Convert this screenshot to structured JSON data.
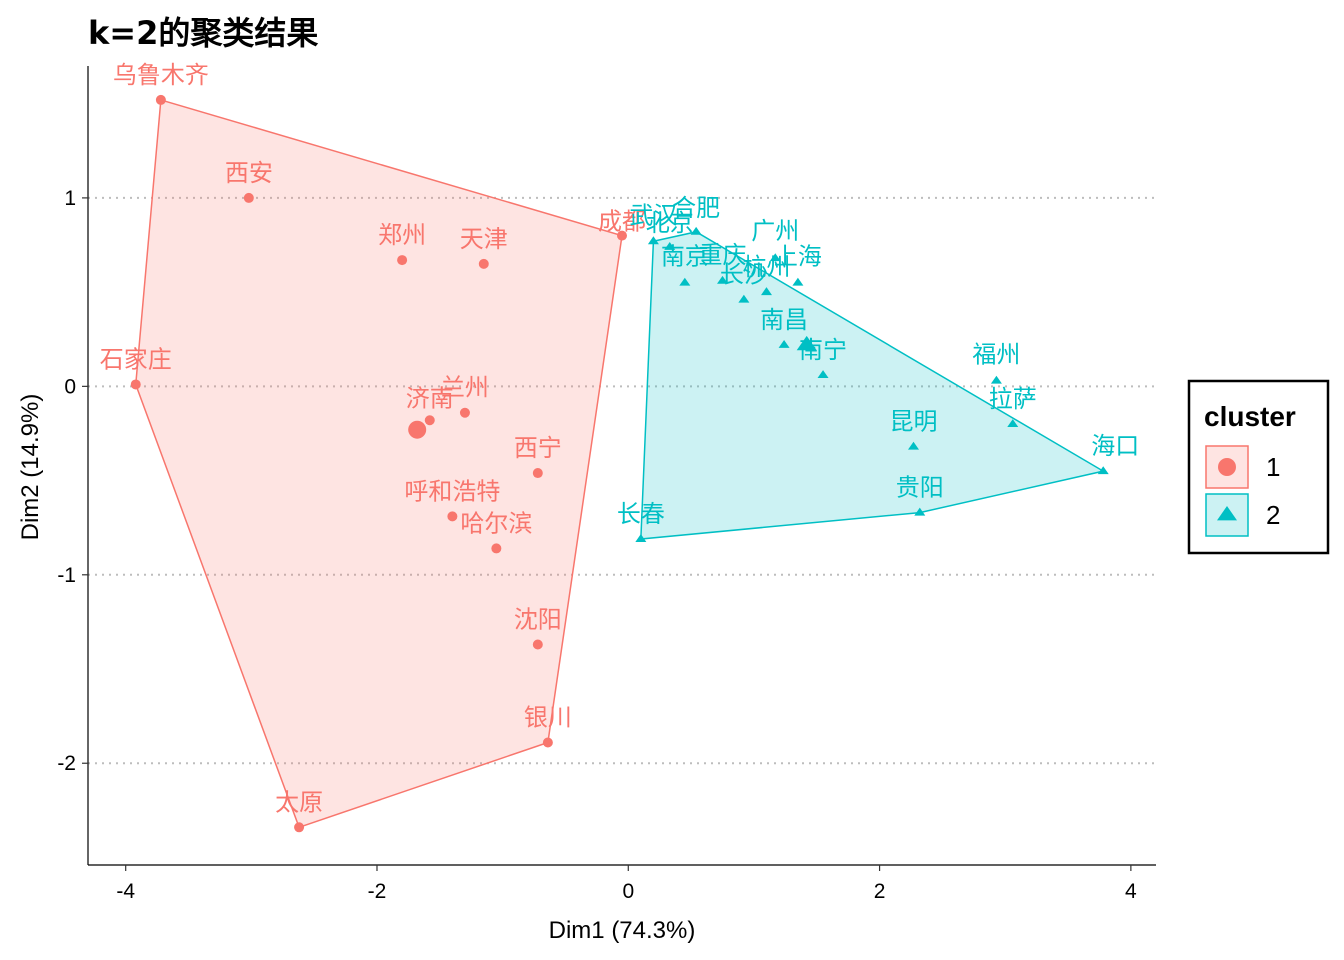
{
  "chart_data": {
    "type": "scatter",
    "title": "k=2的聚类结果",
    "xlabel": "Dim1 (74.3%)",
    "ylabel": "Dim2 (14.9%)",
    "xlim": [
      -4.3,
      4.2
    ],
    "ylim": [
      -2.54,
      1.7
    ],
    "xticks": [
      -4,
      -2,
      0,
      2,
      4
    ],
    "yticks": [
      -2,
      -1,
      0,
      1
    ],
    "xtick_labels": [
      "-4",
      "-2",
      "0",
      "2",
      "4"
    ],
    "ytick_labels": [
      "-2",
      "-1",
      "0",
      "1"
    ],
    "grid": "horizontal dotted at y ticks",
    "legend": {
      "title": "cluster",
      "position": "right",
      "entries": [
        "1",
        "2"
      ]
    },
    "colors": {
      "1": "#F8766D",
      "2": "#00BFC4"
    },
    "series": [
      {
        "name": "1",
        "shape": "circle",
        "points": [
          {
            "label": "乌鲁木齐",
            "x": -3.72,
            "y": 1.52
          },
          {
            "label": "西安",
            "x": -3.02,
            "y": 1.0
          },
          {
            "label": "郑州",
            "x": -1.8,
            "y": 0.67
          },
          {
            "label": "天津",
            "x": -1.15,
            "y": 0.65
          },
          {
            "label": "成都",
            "x": -0.05,
            "y": 0.8
          },
          {
            "label": "石家庄",
            "x": -3.92,
            "y": 0.01
          },
          {
            "label": "济南",
            "x": -1.58,
            "y": -0.18
          },
          {
            "label": "兰州",
            "x": -1.3,
            "y": -0.14
          },
          {
            "label": "西宁",
            "x": -0.72,
            "y": -0.46
          },
          {
            "label": "呼和浩特",
            "x": -1.4,
            "y": -0.69
          },
          {
            "label": "哈尔滨",
            "x": -1.05,
            "y": -0.86
          },
          {
            "label": "沈阳",
            "x": -0.72,
            "y": -1.37
          },
          {
            "label": "银川",
            "x": -0.64,
            "y": -1.89
          },
          {
            "label": "太原",
            "x": -2.62,
            "y": -2.34
          }
        ],
        "center": {
          "x": -1.68,
          "y": -0.23
        },
        "hull": [
          "乌鲁木齐",
          "成都",
          "银川",
          "太原",
          "石家庄"
        ]
      },
      {
        "name": "2",
        "shape": "triangle",
        "points": [
          {
            "label": "武汉",
            "x": 0.2,
            "y": 0.77
          },
          {
            "label": "北京",
            "x": 0.33,
            "y": 0.74
          },
          {
            "label": "合肥",
            "x": 0.54,
            "y": 0.82
          },
          {
            "label": "南京",
            "x": 0.45,
            "y": 0.55
          },
          {
            "label": "重庆",
            "x": 0.75,
            "y": 0.56
          },
          {
            "label": "长沙",
            "x": 0.92,
            "y": 0.46
          },
          {
            "label": "杭州",
            "x": 1.1,
            "y": 0.5
          },
          {
            "label": "广州",
            "x": 1.17,
            "y": 0.68
          },
          {
            "label": "上海",
            "x": 1.35,
            "y": 0.55
          },
          {
            "label": "南昌",
            "x": 1.24,
            "y": 0.22
          },
          {
            "label": "南宁",
            "x": 1.55,
            "y": 0.06
          },
          {
            "label": "福州",
            "x": 2.93,
            "y": 0.03
          },
          {
            "label": "拉萨",
            "x": 3.06,
            "y": -0.2
          },
          {
            "label": "海口",
            "x": 3.78,
            "y": -0.45
          },
          {
            "label": "昆明",
            "x": 2.27,
            "y": -0.32
          },
          {
            "label": "贵阳",
            "x": 2.32,
            "y": -0.67
          },
          {
            "label": "长春",
            "x": 0.1,
            "y": -0.81
          }
        ],
        "center": {
          "x": 1.42,
          "y": 0.22
        },
        "hull": [
          "武汉",
          "合肥",
          "海口",
          "贵阳",
          "长春"
        ]
      }
    ]
  }
}
